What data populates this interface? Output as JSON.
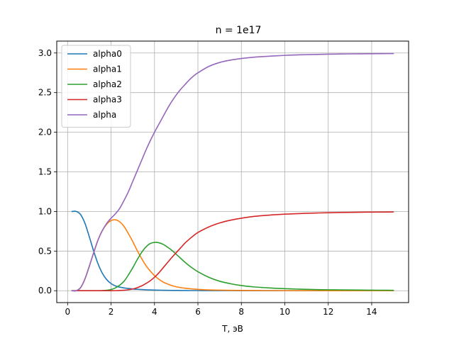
{
  "chart_data": {
    "type": "line",
    "title": "n = 1e17",
    "xlabel": "T, эВ",
    "ylabel": "",
    "xlim": [
      -0.5,
      15.7
    ],
    "ylim": [
      -0.15,
      3.15
    ],
    "xticks": [
      0,
      2,
      4,
      6,
      8,
      10,
      12,
      14
    ],
    "xtick_labels": [
      "0",
      "2",
      "4",
      "6",
      "8",
      "10",
      "12",
      "14"
    ],
    "yticks": [
      0.0,
      0.5,
      1.0,
      1.5,
      2.0,
      2.5,
      3.0
    ],
    "ytick_labels": [
      "0.0",
      "0.5",
      "1.0",
      "1.5",
      "2.0",
      "2.5",
      "3.0"
    ],
    "grid": true,
    "legend_position": "top-left",
    "x": [
      0.2,
      0.4,
      0.6,
      0.8,
      1.0,
      1.2,
      1.4,
      1.6,
      1.8,
      2.0,
      2.2,
      2.4,
      2.6,
      2.8,
      3.0,
      3.2,
      3.4,
      3.6,
      3.8,
      4.0,
      4.2,
      4.4,
      4.6,
      4.8,
      5.0,
      5.2,
      5.4,
      5.6,
      5.8,
      6.0,
      6.5,
      7.0,
      7.5,
      8.0,
      8.5,
      9.0,
      9.5,
      10.0,
      10.5,
      11.0,
      11.5,
      12.0,
      12.5,
      13.0,
      13.5,
      14.0,
      14.5,
      15.0
    ],
    "series": [
      {
        "name": "alpha0",
        "color": "#1f77b4",
        "values": [
          1.0,
          1.0,
          0.96,
          0.85,
          0.68,
          0.5,
          0.34,
          0.22,
          0.14,
          0.09,
          0.06,
          0.045,
          0.035,
          0.028,
          0.022,
          0.018,
          0.015,
          0.012,
          0.01,
          0.008,
          0.007,
          0.006,
          0.005,
          0.004,
          0.004,
          0.003,
          0.003,
          0.002,
          0.002,
          0.002,
          0.001,
          0.001,
          0.001,
          0.0,
          0.0,
          0.0,
          0.0,
          0.0,
          0.0,
          0.0,
          0.0,
          0.0,
          0.0,
          0.0,
          0.0,
          0.0,
          0.0,
          0.0
        ]
      },
      {
        "name": "alpha1",
        "color": "#ff7f0e",
        "values": [
          0.0,
          0.0,
          0.04,
          0.15,
          0.31,
          0.48,
          0.64,
          0.76,
          0.84,
          0.885,
          0.895,
          0.87,
          0.81,
          0.72,
          0.62,
          0.51,
          0.41,
          0.32,
          0.25,
          0.19,
          0.145,
          0.11,
          0.085,
          0.065,
          0.05,
          0.04,
          0.032,
          0.026,
          0.021,
          0.017,
          0.01,
          0.007,
          0.005,
          0.004,
          0.003,
          0.002,
          0.002,
          0.001,
          0.001,
          0.001,
          0.001,
          0.0,
          0.0,
          0.0,
          0.0,
          0.0,
          0.0,
          0.0
        ]
      },
      {
        "name": "alpha2",
        "color": "#2ca02c",
        "values": [
          0.0,
          0.0,
          0.0,
          0.0,
          0.0,
          0.0,
          0.0,
          0.002,
          0.006,
          0.015,
          0.035,
          0.07,
          0.12,
          0.2,
          0.29,
          0.39,
          0.48,
          0.55,
          0.595,
          0.61,
          0.605,
          0.585,
          0.55,
          0.51,
          0.46,
          0.41,
          0.36,
          0.315,
          0.275,
          0.24,
          0.17,
          0.12,
          0.088,
          0.065,
          0.05,
          0.04,
          0.032,
          0.026,
          0.021,
          0.017,
          0.014,
          0.012,
          0.01,
          0.009,
          0.008,
          0.007,
          0.006,
          0.005
        ]
      },
      {
        "name": "alpha3",
        "color": "#d62728",
        "values": [
          0.0,
          0.0,
          0.0,
          0.0,
          0.0,
          0.0,
          0.0,
          0.0,
          0.0,
          0.0,
          0.001,
          0.003,
          0.006,
          0.012,
          0.022,
          0.038,
          0.06,
          0.09,
          0.125,
          0.17,
          0.225,
          0.29,
          0.355,
          0.42,
          0.48,
          0.54,
          0.6,
          0.65,
          0.695,
          0.735,
          0.805,
          0.855,
          0.89,
          0.915,
          0.935,
          0.948,
          0.958,
          0.966,
          0.972,
          0.977,
          0.981,
          0.984,
          0.987,
          0.989,
          0.991,
          0.992,
          0.993,
          0.994
        ]
      },
      {
        "name": "alpha",
        "color": "#9467bd",
        "values": [
          0.0,
          0.0,
          0.04,
          0.15,
          0.31,
          0.48,
          0.64,
          0.76,
          0.85,
          0.915,
          0.97,
          1.04,
          1.14,
          1.25,
          1.38,
          1.51,
          1.64,
          1.77,
          1.89,
          2.0,
          2.1,
          2.2,
          2.3,
          2.39,
          2.47,
          2.54,
          2.6,
          2.66,
          2.71,
          2.75,
          2.83,
          2.88,
          2.91,
          2.93,
          2.945,
          2.955,
          2.963,
          2.97,
          2.975,
          2.979,
          2.982,
          2.985,
          2.987,
          2.989,
          2.99,
          2.991,
          2.992,
          2.993
        ]
      }
    ]
  }
}
